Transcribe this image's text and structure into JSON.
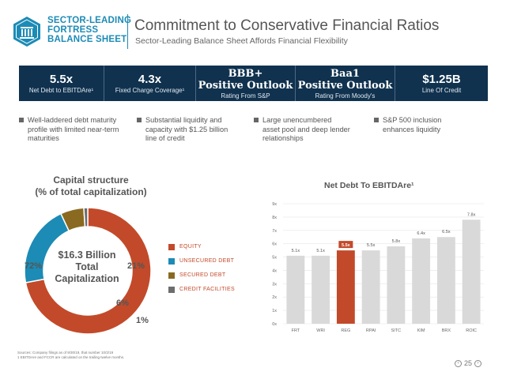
{
  "header": {
    "logo_lines": [
      "SECTOR-LEADING",
      "FORTRESS",
      "BALANCE SHEET"
    ],
    "title": "Commitment to Conservative Financial Ratios",
    "subtitle": "Sector-Leading Balance Sheet Affords Financial Flexibility"
  },
  "metrics": [
    {
      "value": "5.5x",
      "label": "Net Debt to EBITDAre¹"
    },
    {
      "value": "4.3x",
      "label": "Fixed Charge Coverage¹"
    },
    {
      "value": "BBB+\nPositive Outlook",
      "value_line1": "BBB+",
      "value_line2": "Positive Outlook",
      "label": "Rating From S&P"
    },
    {
      "value_line1": "Baa1",
      "value_line2": "Positive Outlook",
      "label": "Rating From Moody's"
    },
    {
      "value": "$1.25B",
      "label": "Line Of Credit"
    }
  ],
  "bullets": [
    {
      "line1": "Well-laddered debt maturity",
      "line2": "profile with limited near-term",
      "line3": "maturities"
    },
    {
      "line1": "Substantial liquidity and",
      "line2": "capacity with $1.25 billion",
      "line3": "line of credit"
    },
    {
      "line1": "Large unencumbered",
      "line2": "asset pool and deep lender",
      "line3": "relationships"
    },
    {
      "line1": "S&P 500 inclusion",
      "line2": "enhances liquidity",
      "line3": ""
    }
  ],
  "capital": {
    "title_line1": "Capital structure",
    "title_line2": "(% of total capitalization)",
    "center_line1": "$16.3 Billion",
    "center_line2": "Total",
    "center_line3": "Capitalization",
    "colors": {
      "equity": "#c24a2a",
      "unsecured": "#1c8bb6",
      "secured": "#8a6a20",
      "credit": "#6d6d6d"
    }
  },
  "chart_data": [
    {
      "type": "pie",
      "labels": [
        "EQUITY",
        "UNSECURED DEBT",
        "SECURED DEBT",
        "CREDIT FACILITIES"
      ],
      "values": [
        72,
        21,
        6,
        1
      ],
      "value_labels": [
        "72%",
        "21%",
        "6%",
        "1%"
      ],
      "title": "Capital structure (% of total capitalization)"
    },
    {
      "type": "bar",
      "title": "Net Debt To EBITDAre¹",
      "categories": [
        "FRT",
        "WRI",
        "REG",
        "RPAI",
        "SITC",
        "KIM",
        "BRX",
        "ROIC"
      ],
      "values": [
        5.1,
        5.1,
        5.5,
        5.5,
        5.8,
        6.4,
        6.5,
        7.8
      ],
      "value_labels": [
        "5.1x",
        "5.1x",
        "5.5x",
        "5.5x",
        "5.8x",
        "6.4x",
        "6.5x",
        "7.8x"
      ],
      "highlight": "REG",
      "ylim": [
        0,
        9
      ],
      "yticks": [
        "0x",
        "1x",
        "2x",
        "3x",
        "4x",
        "5x",
        "6x",
        "7x",
        "8x",
        "9x"
      ],
      "colors": {
        "bar": "#d9d9d9",
        "highlight": "#c24a2a"
      }
    }
  ],
  "footnote": {
    "line1": "Sources: Company filings as of 9/30/19, that number 10/2/19",
    "line2": "1 EBITDAre and FCCR are calculated on the trailing twelve months."
  },
  "page": {
    "number": "25"
  }
}
